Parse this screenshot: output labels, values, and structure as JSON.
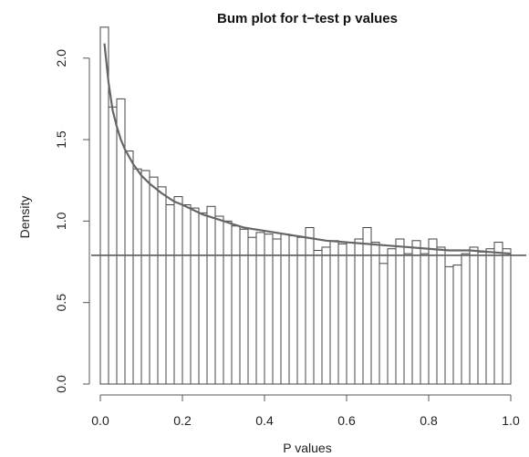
{
  "chart_data": {
    "type": "bar",
    "title": "Bum plot for t−test p values",
    "xlabel": "P values",
    "ylabel": "Density",
    "xlim": [
      0,
      1
    ],
    "ylim": [
      0,
      2.2
    ],
    "bin_width": 0.02,
    "x_ticks": [
      0.0,
      0.2,
      0.4,
      0.6,
      0.8,
      1.0
    ],
    "x_tick_labels": [
      "0.0",
      "0.2",
      "0.4",
      "0.6",
      "0.8",
      "1.0"
    ],
    "y_ticks": [
      0.0,
      0.5,
      1.0,
      1.5,
      2.0
    ],
    "y_tick_labels": [
      "0.0",
      "0.5",
      "1.0",
      "1.5",
      "2.0"
    ],
    "bin_starts": [
      0.0,
      0.02,
      0.04,
      0.06,
      0.08,
      0.1,
      0.12,
      0.14,
      0.16,
      0.18,
      0.2,
      0.22,
      0.24,
      0.26,
      0.28,
      0.3,
      0.32,
      0.34,
      0.36,
      0.38,
      0.4,
      0.42,
      0.44,
      0.46,
      0.48,
      0.5,
      0.52,
      0.54,
      0.56,
      0.58,
      0.6,
      0.62,
      0.64,
      0.66,
      0.68,
      0.7,
      0.72,
      0.74,
      0.76,
      0.78,
      0.8,
      0.82,
      0.84,
      0.86,
      0.88,
      0.9,
      0.92,
      0.94,
      0.96,
      0.98
    ],
    "densities": [
      2.19,
      1.7,
      1.75,
      1.43,
      1.32,
      1.31,
      1.27,
      1.21,
      1.1,
      1.15,
      1.1,
      1.08,
      1.05,
      1.09,
      1.03,
      1.0,
      0.97,
      0.95,
      0.9,
      0.93,
      0.92,
      0.89,
      0.92,
      0.91,
      0.9,
      0.96,
      0.82,
      0.84,
      0.88,
      0.86,
      0.87,
      0.89,
      0.96,
      0.87,
      0.74,
      0.83,
      0.89,
      0.8,
      0.88,
      0.8,
      0.89,
      0.84,
      0.72,
      0.73,
      0.8,
      0.84,
      0.81,
      0.83,
      0.87,
      0.83
    ],
    "fitted_curve": {
      "x": [
        0.01,
        0.02,
        0.03,
        0.04,
        0.05,
        0.06,
        0.08,
        0.1,
        0.12,
        0.15,
        0.18,
        0.2,
        0.25,
        0.3,
        0.35,
        0.4,
        0.45,
        0.5,
        0.55,
        0.6,
        0.65,
        0.7,
        0.75,
        0.8,
        0.85,
        0.9,
        0.95,
        1.0
      ],
      "y": [
        2.09,
        1.85,
        1.68,
        1.58,
        1.5,
        1.44,
        1.35,
        1.28,
        1.23,
        1.17,
        1.12,
        1.1,
        1.04,
        1.0,
        0.96,
        0.94,
        0.92,
        0.9,
        0.88,
        0.87,
        0.86,
        0.85,
        0.84,
        0.83,
        0.82,
        0.82,
        0.81,
        0.8
      ]
    },
    "horizontal_line_y": 0.79,
    "grid": false
  }
}
